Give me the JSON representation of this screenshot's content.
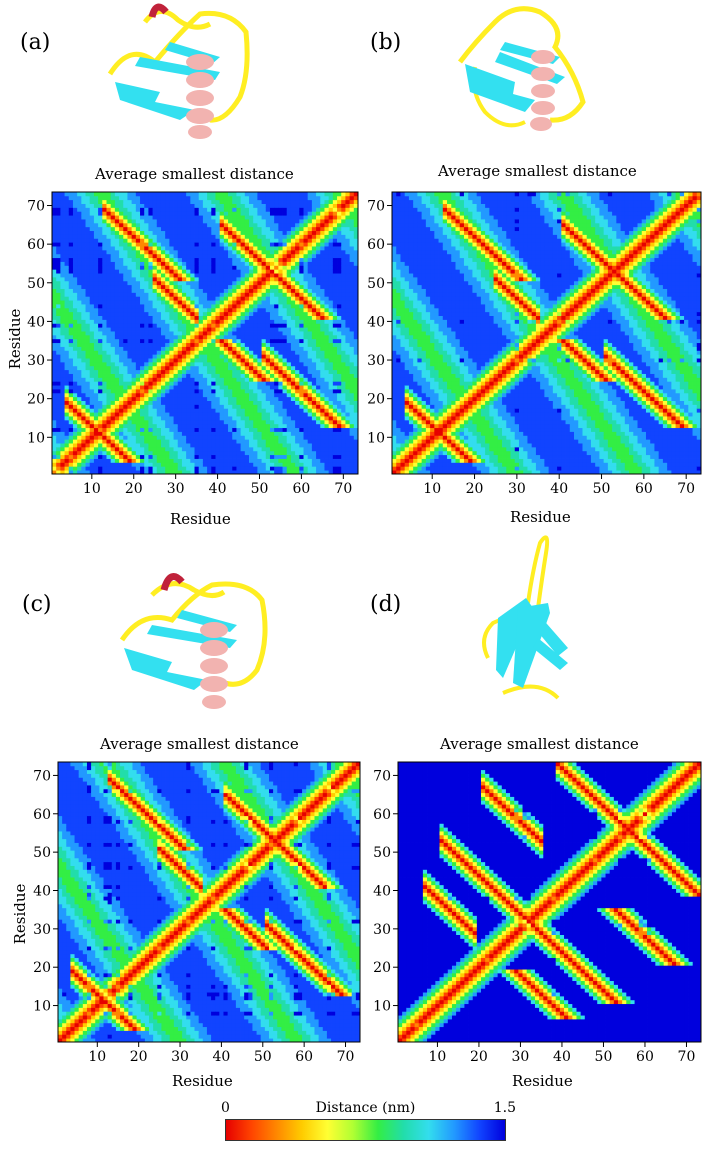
{
  "panels": [
    {
      "label": "(a)",
      "title": "Average smallest distance",
      "xlabel": "Residue",
      "ylabel": "Residue",
      "has_red_loop": true,
      "extended": false
    },
    {
      "label": "(b)",
      "title": "Average smallest distance",
      "xlabel": "Residue",
      "ylabel": "",
      "has_red_loop": false,
      "extended": false
    },
    {
      "label": "(c)",
      "title": "Average smallest distance",
      "xlabel": "Residue",
      "ylabel": "Residue",
      "has_red_loop": true,
      "extended": false
    },
    {
      "label": "(d)",
      "title": "Average smallest distance",
      "xlabel": "Residue",
      "ylabel": "",
      "has_red_loop": false,
      "extended": true
    }
  ],
  "colorbar": {
    "title": "Distance (nm)",
    "min_label": "0",
    "max_label": "1.5",
    "colors": [
      "#e60000",
      "#ff4400",
      "#ff8800",
      "#ffcc00",
      "#ffff33",
      "#b0ff33",
      "#33ee44",
      "#22ddaa",
      "#33ddee",
      "#2299ff",
      "#1144ff",
      "#0000dd"
    ]
  },
  "protein_colors": {
    "helix": "#f2b3b0",
    "sheet": "#33e0f0",
    "coil": "#ffee22",
    "loop_red": "#c0223a"
  },
  "chart_data": [
    {
      "type": "heatmap",
      "panel": "(a)",
      "title": "Average smallest distance",
      "xlabel": "Residue",
      "ylabel": "Residue",
      "xticks": [
        10,
        20,
        30,
        40,
        50,
        60,
        70
      ],
      "yticks": [
        10,
        20,
        30,
        40,
        50,
        60,
        70
      ],
      "xlim": [
        1,
        73
      ],
      "ylim": [
        1,
        73
      ],
      "n_residues": 73,
      "value_range_nm": [
        0,
        1.5
      ]
    },
    {
      "type": "heatmap",
      "panel": "(b)",
      "title": "Average smallest distance",
      "xlabel": "Residue",
      "ylabel": "",
      "xticks": [
        10,
        20,
        30,
        40,
        50,
        60,
        70
      ],
      "yticks": [
        10,
        20,
        30,
        40,
        50,
        60,
        70
      ],
      "xlim": [
        1,
        73
      ],
      "ylim": [
        1,
        73
      ],
      "n_residues": 73,
      "value_range_nm": [
        0,
        1.5
      ]
    },
    {
      "type": "heatmap",
      "panel": "(c)",
      "title": "Average smallest distance",
      "xlabel": "Residue",
      "ylabel": "Residue",
      "xticks": [
        10,
        20,
        30,
        40,
        50,
        60,
        70
      ],
      "yticks": [
        10,
        20,
        30,
        40,
        50,
        60,
        70
      ],
      "xlim": [
        1,
        73
      ],
      "ylim": [
        1,
        73
      ],
      "n_residues": 73,
      "value_range_nm": [
        0,
        1.5
      ]
    },
    {
      "type": "heatmap",
      "panel": "(d)",
      "title": "Average smallest distance",
      "xlabel": "Residue",
      "ylabel": "",
      "xticks": [
        10,
        20,
        30,
        40,
        50,
        60,
        70
      ],
      "yticks": [
        10,
        20,
        30,
        40,
        50,
        60,
        70
      ],
      "xlim": [
        1,
        73
      ],
      "ylim": [
        1,
        73
      ],
      "n_residues": 73,
      "value_range_nm": [
        0,
        1.5
      ]
    }
  ]
}
